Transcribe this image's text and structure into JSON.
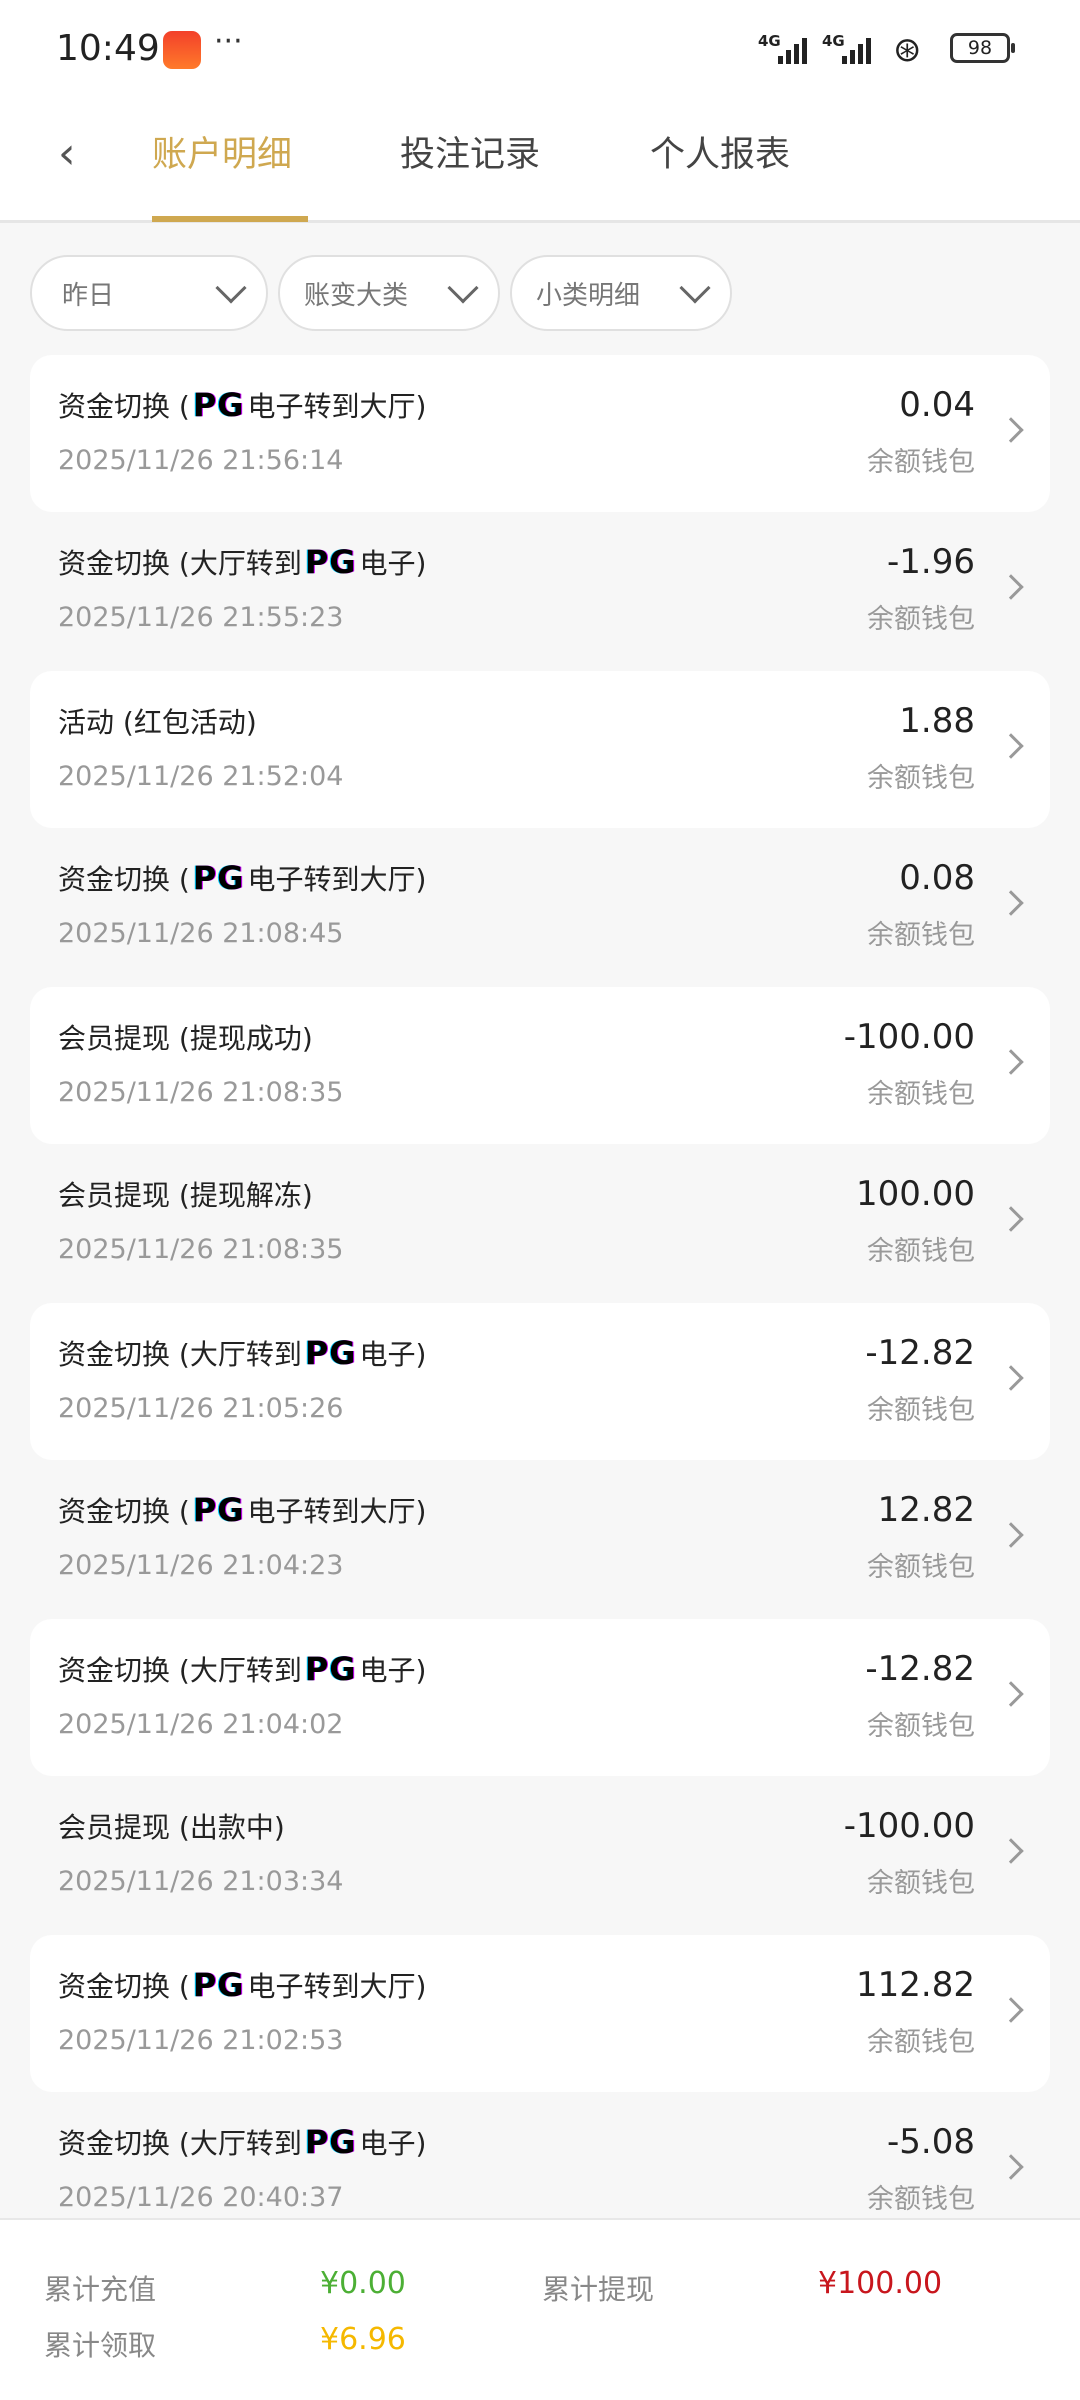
{
  "status_bar": {
    "time": "10:49",
    "more": "···",
    "network1": "4G",
    "network2": "4G",
    "battery": "98"
  },
  "header": {
    "tabs": [
      {
        "label": "账户明细",
        "active": true
      },
      {
        "label": "投注记录",
        "active": false
      },
      {
        "label": "个人报表",
        "active": false
      }
    ],
    "accent": "#cfa850"
  },
  "filters": [
    {
      "label": "昨日"
    },
    {
      "label": "账变大类"
    },
    {
      "label": "小类明细"
    }
  ],
  "records": [
    {
      "pre": "资金切换 (",
      "pg": "PG",
      "post": "电子转到大厅)",
      "datetime": "2025/11/26 21:56:14",
      "amount": "0.04",
      "wallet": "余额钱包"
    },
    {
      "pre": "资金切换 (大厅转到",
      "pg": "PG",
      "post": "电子)",
      "datetime": "2025/11/26 21:55:23",
      "amount": "-1.96",
      "wallet": "余额钱包"
    },
    {
      "pre": "活动 (红包活动)",
      "pg": "",
      "post": "",
      "datetime": "2025/11/26 21:52:04",
      "amount": "1.88",
      "wallet": "余额钱包"
    },
    {
      "pre": "资金切换 (",
      "pg": "PG",
      "post": "电子转到大厅)",
      "datetime": "2025/11/26 21:08:45",
      "amount": "0.08",
      "wallet": "余额钱包"
    },
    {
      "pre": "会员提现 (提现成功)",
      "pg": "",
      "post": "",
      "datetime": "2025/11/26 21:08:35",
      "amount": "-100.00",
      "wallet": "余额钱包"
    },
    {
      "pre": "会员提现 (提现解冻)",
      "pg": "",
      "post": "",
      "datetime": "2025/11/26 21:08:35",
      "amount": "100.00",
      "wallet": "余额钱包"
    },
    {
      "pre": "资金切换 (大厅转到",
      "pg": "PG",
      "post": "电子)",
      "datetime": "2025/11/26 21:05:26",
      "amount": "-12.82",
      "wallet": "余额钱包"
    },
    {
      "pre": "资金切换 (",
      "pg": "PG",
      "post": "电子转到大厅)",
      "datetime": "2025/11/26 21:04:23",
      "amount": "12.82",
      "wallet": "余额钱包"
    },
    {
      "pre": "资金切换 (大厅转到",
      "pg": "PG",
      "post": "电子)",
      "datetime": "2025/11/26 21:04:02",
      "amount": "-12.82",
      "wallet": "余额钱包"
    },
    {
      "pre": "会员提现 (出款中)",
      "pg": "",
      "post": "",
      "datetime": "2025/11/26 21:03:34",
      "amount": "-100.00",
      "wallet": "余额钱包"
    },
    {
      "pre": "资金切换 (",
      "pg": "PG",
      "post": "电子转到大厅)",
      "datetime": "2025/11/26 21:02:53",
      "amount": "112.82",
      "wallet": "余额钱包"
    },
    {
      "pre": "资金切换 (大厅转到",
      "pg": "PG",
      "post": "电子)",
      "datetime": "2025/11/26 20:40:37",
      "amount": "-5.08",
      "wallet": "余额钱包"
    }
  ],
  "footer": {
    "deposit_label": "累计充值",
    "deposit_value": "¥0.00",
    "deposit_color": "#4caf35",
    "withdraw_label": "累计提现",
    "withdraw_value": "¥100.00",
    "withdraw_color": "#c8161d",
    "claim_label": "累计领取",
    "claim_value": "¥6.96",
    "claim_color": "#f5b800"
  }
}
